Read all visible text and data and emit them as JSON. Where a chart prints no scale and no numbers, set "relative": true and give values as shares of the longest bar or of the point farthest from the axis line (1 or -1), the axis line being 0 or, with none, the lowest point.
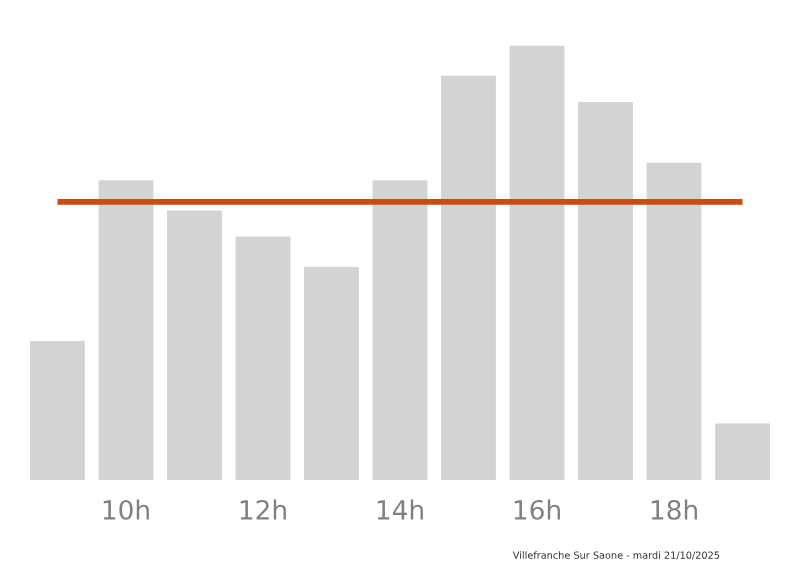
{
  "chart_data": {
    "type": "bar",
    "relative": true,
    "categories": [
      null,
      "10h",
      null,
      "12h",
      null,
      "14h",
      null,
      "16h",
      null,
      "18h",
      null
    ],
    "values": [
      0.32,
      0.69,
      0.62,
      0.56,
      0.49,
      0.69,
      0.93,
      1,
      0.87,
      0.73,
      0.13
    ],
    "color": "#d3d3d3",
    "ref_lines": [
      {
        "axis": "y",
        "value": 0.64,
        "color": "#cc4a14"
      }
    ],
    "annotations": [
      "Villefranche Sur Saone - mardi 21/10/2025"
    ],
    "grid": false,
    "legend": false
  }
}
